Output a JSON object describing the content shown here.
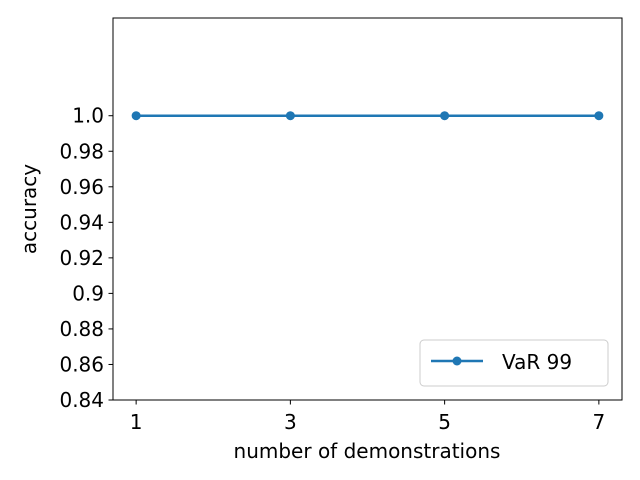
{
  "chart_data": {
    "type": "line",
    "title": "",
    "xlabel": "number of demonstrations",
    "ylabel": "accuracy",
    "x": [
      1,
      3,
      5,
      7
    ],
    "x_tick_labels": [
      "1",
      "3",
      "5",
      "7"
    ],
    "xlim": [
      0.7,
      7.3
    ],
    "ylim": [
      0.84,
      1.055
    ],
    "y_ticks": [
      0.84,
      0.86,
      0.88,
      0.9,
      0.92,
      0.94,
      0.96,
      0.98,
      1.0
    ],
    "y_tick_labels": [
      "0.84",
      "0.86",
      "0.88",
      "0.9",
      "0.92",
      "0.94",
      "0.96",
      "0.98",
      "1.0"
    ],
    "series": [
      {
        "name": "VaR 99",
        "values": [
          1.0,
          1.0,
          1.0,
          1.0
        ],
        "color": "#1f77b4",
        "marker": "circle"
      }
    ],
    "grid": false,
    "legend_position": "lower-right"
  }
}
